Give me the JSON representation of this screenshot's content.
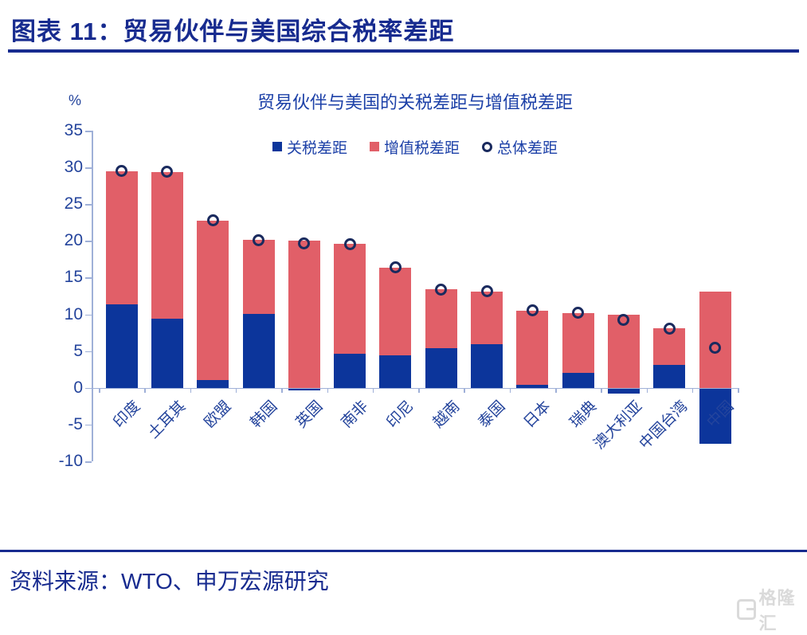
{
  "header": {
    "title": "图表 11：贸易伙伴与美国综合税率差距"
  },
  "chart_data": {
    "type": "bar",
    "stacked": true,
    "title": "贸易伙伴与美国的关税差距与增值税差距",
    "unit_label": "%",
    "ylim": [
      -10,
      35
    ],
    "yticks": [
      35,
      30,
      25,
      20,
      15,
      10,
      5,
      0,
      -5,
      -10
    ],
    "grid": false,
    "legend_position": "top-center",
    "categories": [
      "印度",
      "土耳其",
      "欧盟",
      "韩国",
      "英国",
      "南非",
      "印尼",
      "越南",
      "泰国",
      "日本",
      "瑞典",
      "澳大利亚",
      "中国台湾",
      "中国"
    ],
    "series": [
      {
        "name": "关税差距",
        "type": "bar",
        "color": "#0C359B",
        "values": [
          11.4,
          9.4,
          1.1,
          10.1,
          -0.3,
          4.6,
          4.4,
          5.4,
          5.9,
          0.4,
          2.0,
          -0.8,
          3.1,
          -7.6
        ]
      },
      {
        "name": "增值税差距",
        "type": "bar",
        "color": "#E15F68",
        "values": [
          18.1,
          20.0,
          21.7,
          10.0,
          20.0,
          15.0,
          12.0,
          8.0,
          7.2,
          10.1,
          8.2,
          10.0,
          5.0,
          13.1
        ]
      },
      {
        "name": "总体差距",
        "type": "circle-marker",
        "color": "#1A2A5E",
        "values": [
          29.5,
          29.4,
          22.8,
          20.1,
          19.7,
          19.6,
          16.4,
          13.4,
          13.1,
          10.5,
          10.2,
          9.2,
          8.1,
          5.5
        ]
      }
    ],
    "axis_color": "#9FB0D8"
  },
  "footer": {
    "source": "资料来源：WTO、申万宏源研究",
    "watermark": "格隆汇"
  }
}
